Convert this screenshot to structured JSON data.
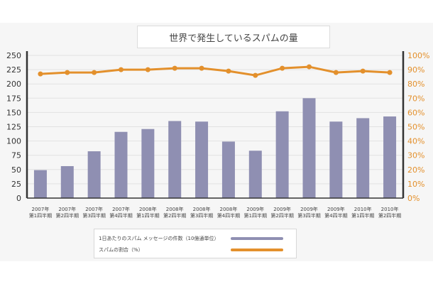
{
  "colors": {
    "bar": "#8f8fb2",
    "line": "#e3902c",
    "axis_left": "#333333",
    "axis_right": "#e3902c",
    "grid": "#e2e2e2"
  },
  "chart_data": {
    "type": "bar",
    "title": "世界で発生しているスパムの量",
    "categories": [
      [
        "2007年",
        "第1四半期"
      ],
      [
        "2007年",
        "第2四半期"
      ],
      [
        "2007年",
        "第3四半期"
      ],
      [
        "2007年",
        "第4四半期"
      ],
      [
        "2008年",
        "第1四半期"
      ],
      [
        "2008年",
        "第2四半期"
      ],
      [
        "2008年",
        "第3四半期"
      ],
      [
        "2008年",
        "第4四半期"
      ],
      [
        "2009年",
        "第1四半期"
      ],
      [
        "2009年",
        "第2四半期"
      ],
      [
        "2009年",
        "第3四半期"
      ],
      [
        "2009年",
        "第4四半期"
      ],
      [
        "2010年",
        "第1四半期"
      ],
      [
        "2010年",
        "第2四半期"
      ]
    ],
    "series": [
      {
        "name": "1日あたりのスパム メッセージの件数（10億通単位）",
        "type": "bar",
        "axis": "left",
        "values": [
          49,
          56,
          82,
          116,
          121,
          135,
          134,
          99,
          83,
          152,
          175,
          134,
          140,
          143
        ]
      },
      {
        "name": "スパムの割合（%）",
        "type": "line",
        "axis": "right",
        "values": [
          87,
          88,
          88,
          90,
          90,
          91,
          91,
          89,
          86,
          91,
          92,
          88,
          89,
          88
        ]
      }
    ],
    "y_left": {
      "ylim": [
        0,
        250
      ],
      "ticks": [
        "0",
        "25",
        "50",
        "75",
        "100",
        "125",
        "150",
        "175",
        "200",
        "225",
        "250"
      ]
    },
    "y_right": {
      "ylim": [
        0,
        100
      ],
      "ticks": [
        "0%",
        "10%",
        "20%",
        "30%",
        "40%",
        "50%",
        "60%",
        "70%",
        "80%",
        "90%",
        "100%"
      ]
    },
    "grid": true,
    "legend_position": "bottom"
  }
}
